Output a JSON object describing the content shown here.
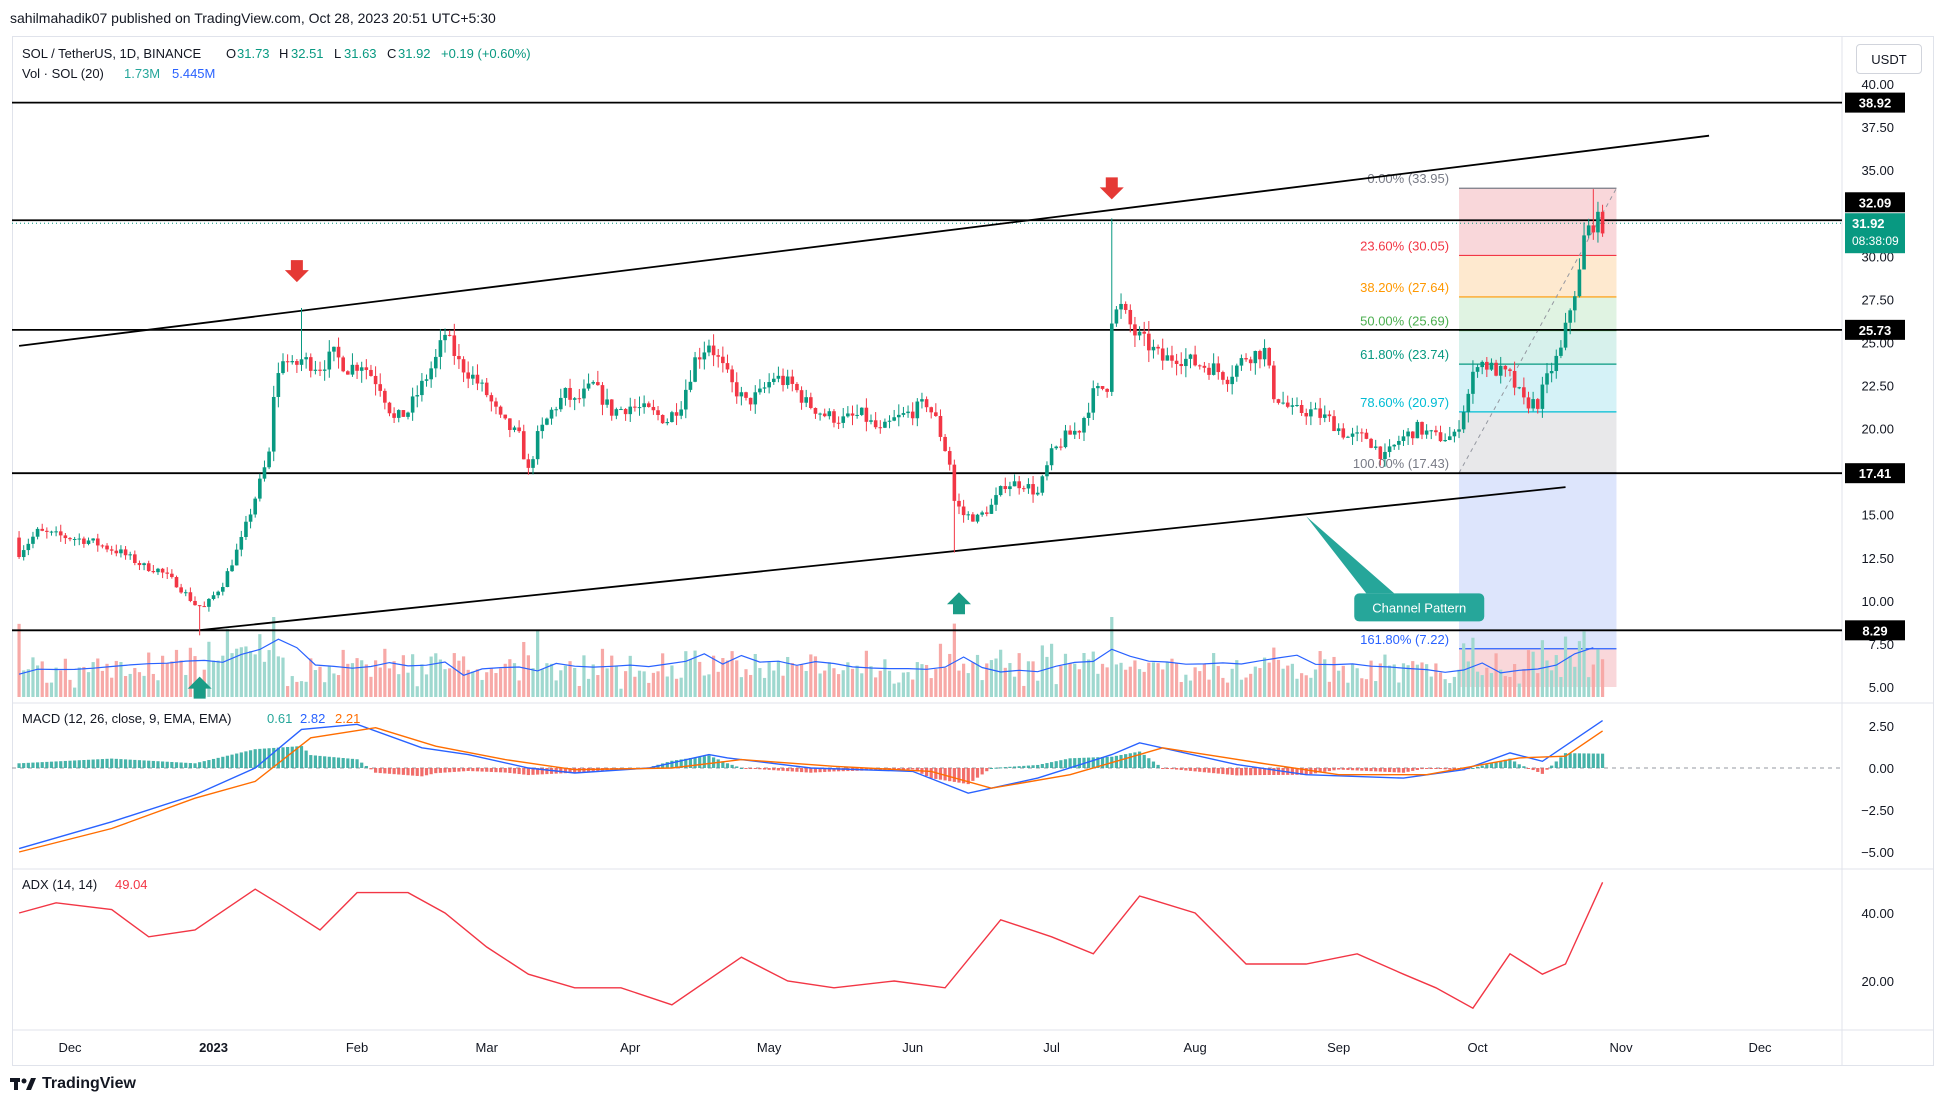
{
  "publisher_line": "sahilmahadik07 published on TradingView.com, Oct 28, 2023 20:51 UTC+5:30",
  "currency_button": "USDT",
  "footer_brand": "TradingView",
  "colors": {
    "up": "#089981",
    "down": "#f23645",
    "vol_up": "#9fd8cf",
    "vol_down": "#f7a9a7",
    "vol_ma": "#2962ff",
    "macd": "#2962ff",
    "signal": "#ff6d00",
    "adx": "#f23645",
    "level_line": "#000000",
    "callout": "#26a69a"
  },
  "chart_data": [
    {
      "type": "candlestick",
      "legend": {
        "symbol": "SOL / TetherUS, 1D, BINANCE",
        "o_label": "O",
        "o": "31.73",
        "h_label": "H",
        "h": "32.51",
        "l_label": "L",
        "l": "31.63",
        "c_label": "C",
        "c": "31.92",
        "change": "+0.19 (+0.60%)"
      },
      "volume_legend": {
        "label": "Vol · SOL (20)",
        "v1": "1.73M",
        "v2": "5.445M"
      },
      "y_ticks": [
        "40.00",
        "37.50",
        "35.00",
        "30.00",
        "27.50",
        "25.00",
        "22.50",
        "20.00",
        "15.00",
        "12.50",
        "10.00",
        "7.50",
        "5.00"
      ],
      "x_ticks": [
        "Dec",
        "2023",
        "Feb",
        "Mar",
        "Apr",
        "May",
        "Jun",
        "Jul",
        "Aug",
        "Sep",
        "Oct",
        "Nov",
        "Dec"
      ],
      "price_labels": [
        {
          "text": "38.92",
          "value": 38.92,
          "kind": "level"
        },
        {
          "text": "32.09",
          "value": 32.09,
          "kind": "level"
        },
        {
          "text": "31.92",
          "value": 31.92,
          "kind": "last",
          "sub": "08:38:09"
        },
        {
          "text": "25.73",
          "value": 25.73,
          "kind": "level"
        },
        {
          "text": "17.41",
          "value": 17.41,
          "kind": "level"
        },
        {
          "text": "8.29",
          "value": 8.29,
          "kind": "level"
        }
      ],
      "horizontal_levels": [
        38.92,
        32.09,
        25.73,
        17.41,
        8.29
      ],
      "channel": {
        "upper": [
          {
            "date": "2022-11-20",
            "value": 24.8
          },
          {
            "date": "2023-11-20",
            "value": 37.0
          }
        ],
        "lower": [
          {
            "date": "2022-12-29",
            "value": 8.3
          },
          {
            "date": "2023-10-20",
            "value": 16.6
          }
        ]
      },
      "fibonacci": {
        "start": "2023-09-27",
        "end": "2023-10-31",
        "levels": [
          {
            "label": "0.00% (33.95)",
            "value": 33.95,
            "color": "#787b86"
          },
          {
            "label": "23.60% (30.05)",
            "value": 30.05,
            "color": "#f23645"
          },
          {
            "label": "38.20% (27.64)",
            "value": 27.64,
            "color": "#ff9800"
          },
          {
            "label": "50.00% (25.69)",
            "value": 25.69,
            "color": "#4caf50"
          },
          {
            "label": "61.80% (23.74)",
            "value": 23.74,
            "color": "#089981"
          },
          {
            "label": "78.60% (20.97)",
            "value": 20.97,
            "color": "#00bcd4"
          },
          {
            "label": "100.00% (17.43)",
            "value": 17.43,
            "color": "#787b86"
          },
          {
            "label": "161.80% (7.22)",
            "value": 7.22,
            "color": "#2962ff"
          }
        ]
      },
      "annotations": [
        {
          "type": "arrow-down",
          "date": "2023-01-19",
          "value": 28.5
        },
        {
          "type": "arrow-down",
          "date": "2023-07-14",
          "value": 33.3
        },
        {
          "type": "arrow-up",
          "date": "2022-12-29",
          "value": 5.6
        },
        {
          "type": "arrow-up",
          "date": "2023-06-11",
          "value": 10.5
        },
        {
          "type": "callout",
          "text": "Channel Pattern",
          "date": "2023-08-25",
          "value": 14.9
        }
      ],
      "close_points": [
        [
          "2022-11-20",
          12.8
        ],
        [
          "2022-11-24",
          14.0
        ],
        [
          "2022-11-28",
          13.8
        ],
        [
          "2022-12-05",
          13.5
        ],
        [
          "2022-12-12",
          12.8
        ],
        [
          "2022-12-17",
          12.0
        ],
        [
          "2022-12-20",
          11.8
        ],
        [
          "2022-12-24",
          11.0
        ],
        [
          "2022-12-28",
          9.8
        ],
        [
          "2022-12-30",
          9.6
        ],
        [
          "2023-01-03",
          11.0
        ],
        [
          "2023-01-07",
          13.5
        ],
        [
          "2023-01-10",
          16.0
        ],
        [
          "2023-01-13",
          18.5
        ],
        [
          "2023-01-14",
          22.0
        ],
        [
          "2023-01-16",
          24.2
        ],
        [
          "2023-01-18",
          23.5
        ],
        [
          "2023-01-20",
          24.0
        ],
        [
          "2023-01-24",
          23.6
        ],
        [
          "2023-01-27",
          24.3
        ],
        [
          "2023-01-30",
          23.5
        ],
        [
          "2023-02-02",
          23.8
        ],
        [
          "2023-02-06",
          22.5
        ],
        [
          "2023-02-09",
          20.5
        ],
        [
          "2023-02-12",
          21.0
        ],
        [
          "2023-02-15",
          22.5
        ],
        [
          "2023-02-18",
          24.0
        ],
        [
          "2023-02-20",
          25.5
        ],
        [
          "2023-02-23",
          23.8
        ],
        [
          "2023-02-26",
          23.0
        ],
        [
          "2023-03-01",
          22.0
        ],
        [
          "2023-03-04",
          20.5
        ],
        [
          "2023-03-08",
          19.5
        ],
        [
          "2023-03-10",
          17.5
        ],
        [
          "2023-03-12",
          19.5
        ],
        [
          "2023-03-15",
          21.0
        ],
        [
          "2023-03-18",
          22.0
        ],
        [
          "2023-03-20",
          21.5
        ],
        [
          "2023-03-24",
          22.5
        ],
        [
          "2023-03-28",
          21.0
        ],
        [
          "2023-04-01",
          21.3
        ],
        [
          "2023-04-05",
          21.0
        ],
        [
          "2023-04-09",
          20.5
        ],
        [
          "2023-04-12",
          21.5
        ],
        [
          "2023-04-15",
          24.0
        ],
        [
          "2023-04-18",
          25.0
        ],
        [
          "2023-04-20",
          24.0
        ],
        [
          "2023-04-23",
          22.5
        ],
        [
          "2023-04-26",
          21.5
        ],
        [
          "2023-04-29",
          22.0
        ],
        [
          "2023-05-02",
          23.0
        ],
        [
          "2023-05-06",
          22.5
        ],
        [
          "2023-05-09",
          21.5
        ],
        [
          "2023-05-13",
          20.8
        ],
        [
          "2023-05-17",
          20.5
        ],
        [
          "2023-05-21",
          20.8
        ],
        [
          "2023-05-25",
          19.8
        ],
        [
          "2023-05-28",
          20.5
        ],
        [
          "2023-06-01",
          21.0
        ],
        [
          "2023-06-04",
          21.5
        ],
        [
          "2023-06-06",
          20.5
        ],
        [
          "2023-06-09",
          18.0
        ],
        [
          "2023-06-10",
          15.8
        ],
        [
          "2023-06-12",
          15.0
        ],
        [
          "2023-06-15",
          14.8
        ],
        [
          "2023-06-18",
          15.5
        ],
        [
          "2023-06-21",
          16.8
        ],
        [
          "2023-06-25",
          16.8
        ],
        [
          "2023-06-28",
          16.2
        ],
        [
          "2023-07-01",
          18.5
        ],
        [
          "2023-07-04",
          19.5
        ],
        [
          "2023-07-07",
          20.0
        ],
        [
          "2023-07-10",
          22.0
        ],
        [
          "2023-07-13",
          22.5
        ],
        [
          "2023-07-14",
          26.5
        ],
        [
          "2023-07-16",
          27.0
        ],
        [
          "2023-07-19",
          25.5
        ],
        [
          "2023-07-22",
          24.8
        ],
        [
          "2023-07-25",
          24.0
        ],
        [
          "2023-07-28",
          24.2
        ],
        [
          "2023-08-01",
          23.8
        ],
        [
          "2023-08-05",
          23.5
        ],
        [
          "2023-08-08",
          23.0
        ],
        [
          "2023-08-12",
          24.2
        ],
        [
          "2023-08-16",
          24.5
        ],
        [
          "2023-08-18",
          22.0
        ],
        [
          "2023-08-22",
          21.0
        ],
        [
          "2023-08-26",
          21.0
        ],
        [
          "2023-08-30",
          20.5
        ],
        [
          "2023-09-03",
          19.5
        ],
        [
          "2023-09-07",
          19.5
        ],
        [
          "2023-09-11",
          18.3
        ],
        [
          "2023-09-14",
          19.3
        ],
        [
          "2023-09-18",
          20.0
        ],
        [
          "2023-09-22",
          19.5
        ],
        [
          "2023-09-26",
          19.5
        ],
        [
          "2023-09-29",
          22.0
        ],
        [
          "2023-10-01",
          24.0
        ],
        [
          "2023-10-04",
          23.5
        ],
        [
          "2023-10-08",
          23.0
        ],
        [
          "2023-10-11",
          21.5
        ],
        [
          "2023-10-14",
          21.5
        ],
        [
          "2023-10-17",
          23.5
        ],
        [
          "2023-10-19",
          24.5
        ],
        [
          "2023-10-21",
          27.0
        ],
        [
          "2023-10-23",
          29.0
        ],
        [
          "2023-10-24",
          31.0
        ],
        [
          "2023-10-26",
          32.0
        ],
        [
          "2023-10-28",
          31.92
        ]
      ]
    },
    {
      "type": "line",
      "title": "MACD (12, 26, close, 9, EMA, EMA)",
      "values_legend": [
        "0.61",
        "2.82",
        "2.21"
      ],
      "y_ticks": [
        "2.50",
        "0.00",
        "−2.50",
        "−5.00"
      ],
      "series": [
        {
          "role": "macd",
          "values": [
            [
              "2022-11-20",
              -4.8
            ],
            [
              "2022-12-10",
              -3.2
            ],
            [
              "2022-12-28",
              -1.6
            ],
            [
              "2023-01-10",
              0.0
            ],
            [
              "2023-01-20",
              2.3
            ],
            [
              "2023-02-01",
              2.6
            ],
            [
              "2023-02-15",
              1.2
            ],
            [
              "2023-02-25",
              0.8
            ],
            [
              "2023-03-10",
              0.0
            ],
            [
              "2023-03-20",
              -0.3
            ],
            [
              "2023-04-05",
              0.0
            ],
            [
              "2023-04-18",
              0.8
            ],
            [
              "2023-04-22",
              0.6
            ],
            [
              "2023-05-10",
              0.0
            ],
            [
              "2023-06-01",
              -0.2
            ],
            [
              "2023-06-13",
              -1.5
            ],
            [
              "2023-06-28",
              -0.6
            ],
            [
              "2023-07-14",
              0.8
            ],
            [
              "2023-07-20",
              1.5
            ],
            [
              "2023-08-10",
              0.2
            ],
            [
              "2023-08-25",
              -0.4
            ],
            [
              "2023-09-15",
              -0.6
            ],
            [
              "2023-09-28",
              -0.1
            ],
            [
              "2023-10-08",
              0.9
            ],
            [
              "2023-10-15",
              0.4
            ],
            [
              "2023-10-28",
              2.82
            ]
          ]
        },
        {
          "role": "signal",
          "values": [
            [
              "2022-11-20",
              -5.0
            ],
            [
              "2022-12-10",
              -3.6
            ],
            [
              "2022-12-28",
              -1.8
            ],
            [
              "2023-01-10",
              -0.8
            ],
            [
              "2023-01-22",
              1.8
            ],
            [
              "2023-02-05",
              2.4
            ],
            [
              "2023-02-18",
              1.3
            ],
            [
              "2023-03-05",
              0.5
            ],
            [
              "2023-03-20",
              -0.1
            ],
            [
              "2023-04-10",
              0.0
            ],
            [
              "2023-04-25",
              0.5
            ],
            [
              "2023-05-15",
              0.1
            ],
            [
              "2023-06-05",
              -0.2
            ],
            [
              "2023-06-18",
              -1.2
            ],
            [
              "2023-07-05",
              -0.4
            ],
            [
              "2023-07-25",
              1.2
            ],
            [
              "2023-08-15",
              0.3
            ],
            [
              "2023-09-01",
              -0.4
            ],
            [
              "2023-09-20",
              -0.4
            ],
            [
              "2023-10-10",
              0.6
            ],
            [
              "2023-10-20",
              0.7
            ],
            [
              "2023-10-28",
              2.21
            ]
          ]
        }
      ]
    },
    {
      "type": "line",
      "title": "ADX (14, 14)",
      "value_legend": "49.04",
      "y_ticks": [
        "40.00",
        "20.00"
      ],
      "series": [
        {
          "role": "adx",
          "values": [
            [
              "2022-11-20",
              40
            ],
            [
              "2022-11-28",
              43
            ],
            [
              "2022-12-10",
              41
            ],
            [
              "2022-12-18",
              33
            ],
            [
              "2022-12-28",
              35
            ],
            [
              "2023-01-10",
              47
            ],
            [
              "2023-01-16",
              42
            ],
            [
              "2023-01-24",
              35
            ],
            [
              "2023-02-01",
              46
            ],
            [
              "2023-02-12",
              46
            ],
            [
              "2023-02-20",
              40
            ],
            [
              "2023-03-01",
              30
            ],
            [
              "2023-03-10",
              22
            ],
            [
              "2023-03-20",
              18
            ],
            [
              "2023-03-30",
              18
            ],
            [
              "2023-04-10",
              13
            ],
            [
              "2023-04-25",
              27
            ],
            [
              "2023-05-05",
              20
            ],
            [
              "2023-05-15",
              18
            ],
            [
              "2023-05-28",
              20
            ],
            [
              "2023-06-08",
              18
            ],
            [
              "2023-06-20",
              38
            ],
            [
              "2023-07-01",
              33
            ],
            [
              "2023-07-10",
              28
            ],
            [
              "2023-07-20",
              45
            ],
            [
              "2023-08-01",
              40
            ],
            [
              "2023-08-12",
              25
            ],
            [
              "2023-08-25",
              25
            ],
            [
              "2023-09-05",
              28
            ],
            [
              "2023-09-15",
              22
            ],
            [
              "2023-09-22",
              18
            ],
            [
              "2023-09-30",
              12
            ],
            [
              "2023-10-08",
              28
            ],
            [
              "2023-10-15",
              22
            ],
            [
              "2023-10-20",
              25
            ],
            [
              "2023-10-28",
              49.04
            ]
          ]
        }
      ]
    }
  ]
}
